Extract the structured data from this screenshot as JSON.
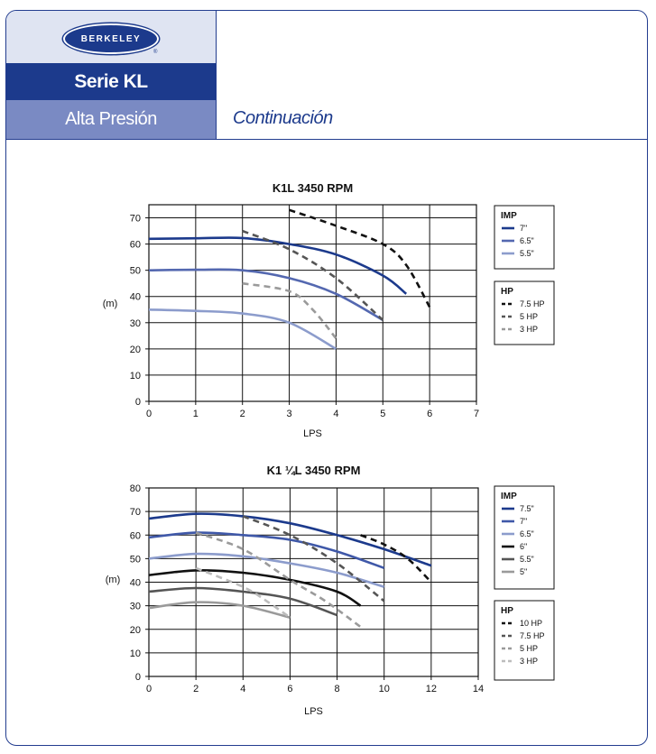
{
  "header": {
    "logo_text": "BERKELEY",
    "logo_reg": "®",
    "series": "Serie KL",
    "subtitle": "Alta Presión",
    "continuation": "Continuación"
  },
  "colors": {
    "brand_blue": "#1c3a8c",
    "band_light": "#7a8ac3",
    "logo_bg": "#dfe4f2"
  },
  "chart_data": [
    {
      "type": "line",
      "title": "K1L 3450 RPM",
      "xlabel": "LPS",
      "ylabel": "(m)",
      "xlim": [
        0,
        7
      ],
      "ylim": [
        0,
        75
      ],
      "xticks": [
        0,
        1,
        2,
        3,
        4,
        5,
        6,
        7
      ],
      "yticks": [
        0,
        10,
        20,
        30,
        40,
        50,
        60,
        70
      ],
      "grid": true,
      "legend_position": "right",
      "impeller_legend": {
        "title": "IMP",
        "items": [
          {
            "label": "7\"",
            "color": "#1c3a8c"
          },
          {
            "label": "6.5\"",
            "color": "#5468b0"
          },
          {
            "label": "5.5\"",
            "color": "#8c9ccc"
          }
        ]
      },
      "hp_legend": {
        "title": "HP",
        "items": [
          {
            "label": "7.5 HP",
            "color": "#111111"
          },
          {
            "label": "5 HP",
            "color": "#555555"
          },
          {
            "label": "3 HP",
            "color": "#9a9a9a"
          }
        ]
      },
      "series": [
        {
          "name": "7\"",
          "color": "#1c3a8c",
          "dashed": false,
          "x": [
            0,
            1,
            2,
            3,
            4,
            5,
            5.5
          ],
          "y": [
            62,
            62.2,
            62.3,
            60,
            56,
            48,
            41
          ]
        },
        {
          "name": "6.5\"",
          "color": "#5468b0",
          "dashed": false,
          "x": [
            0,
            1,
            2,
            3,
            4,
            5
          ],
          "y": [
            50,
            50.2,
            50,
            47,
            41,
            31
          ]
        },
        {
          "name": "5.5\"",
          "color": "#8c9ccc",
          "dashed": false,
          "x": [
            0,
            1,
            2,
            3,
            4
          ],
          "y": [
            35,
            34.5,
            33.5,
            30,
            20
          ]
        },
        {
          "name": "7.5 HP",
          "color": "#111111",
          "dashed": true,
          "x": [
            3,
            4,
            5,
            5.5,
            6
          ],
          "y": [
            73,
            67,
            60,
            52,
            36
          ]
        },
        {
          "name": "5 HP",
          "color": "#555555",
          "dashed": true,
          "x": [
            2,
            3,
            4,
            5
          ],
          "y": [
            65,
            58,
            47,
            31
          ]
        },
        {
          "name": "3 HP",
          "color": "#9a9a9a",
          "dashed": true,
          "x": [
            2,
            3,
            3.5,
            4
          ],
          "y": [
            45,
            42,
            35,
            24
          ]
        }
      ]
    },
    {
      "type": "line",
      "title": "K1 ¼L 3450 RPM",
      "xlabel": "LPS",
      "ylabel": "(m)",
      "xlim": [
        0,
        14
      ],
      "ylim": [
        0,
        80
      ],
      "xticks": [
        0,
        2,
        4,
        6,
        8,
        10,
        12,
        14
      ],
      "yticks": [
        0,
        10,
        20,
        30,
        40,
        50,
        60,
        70,
        80
      ],
      "grid": true,
      "legend_position": "right",
      "impeller_legend": {
        "title": "IMP",
        "items": [
          {
            "label": "7.5\"",
            "color": "#1c3a8c"
          },
          {
            "label": "7\"",
            "color": "#3f58a8"
          },
          {
            "label": "6.5\"",
            "color": "#8c9ccc"
          },
          {
            "label": "6\"",
            "color": "#111111"
          },
          {
            "label": "5.5\"",
            "color": "#555555"
          },
          {
            "label": "5\"",
            "color": "#9a9a9a"
          }
        ]
      },
      "hp_legend": {
        "title": "HP",
        "items": [
          {
            "label": "10 HP",
            "color": "#111111"
          },
          {
            "label": "7.5 HP",
            "color": "#555555"
          },
          {
            "label": "5 HP",
            "color": "#9a9a9a"
          },
          {
            "label": "3 HP",
            "color": "#bcbcbc"
          }
        ]
      },
      "series": [
        {
          "name": "7.5\"",
          "color": "#1c3a8c",
          "dashed": false,
          "x": [
            0,
            2,
            4,
            6,
            8,
            10,
            12
          ],
          "y": [
            67,
            69,
            68,
            65,
            60,
            54,
            47
          ]
        },
        {
          "name": "7\"",
          "color": "#3f58a8",
          "dashed": false,
          "x": [
            0,
            2,
            4,
            6,
            8,
            10
          ],
          "y": [
            59,
            61,
            60,
            58,
            53,
            46
          ]
        },
        {
          "name": "6.5\"",
          "color": "#8c9ccc",
          "dashed": false,
          "x": [
            0,
            2,
            4,
            6,
            8,
            10
          ],
          "y": [
            50,
            52,
            51,
            48,
            44,
            38
          ]
        },
        {
          "name": "6\"",
          "color": "#111111",
          "dashed": false,
          "x": [
            0,
            2,
            4,
            6,
            8,
            9
          ],
          "y": [
            43,
            45,
            44,
            41,
            36,
            30
          ]
        },
        {
          "name": "5.5\"",
          "color": "#555555",
          "dashed": false,
          "x": [
            0,
            2,
            4,
            6,
            8
          ],
          "y": [
            36,
            37.5,
            36,
            33,
            26
          ]
        },
        {
          "name": "5\"",
          "color": "#9a9a9a",
          "dashed": false,
          "x": [
            0,
            2,
            4,
            6
          ],
          "y": [
            29,
            31.5,
            30,
            25
          ]
        },
        {
          "name": "10 HP",
          "color": "#111111",
          "dashed": true,
          "x": [
            9,
            10,
            11,
            12
          ],
          "y": [
            60,
            56,
            50,
            40
          ]
        },
        {
          "name": "7.5 HP",
          "color": "#555555",
          "dashed": true,
          "x": [
            4,
            6,
            8,
            10
          ],
          "y": [
            68,
            60,
            48,
            32
          ]
        },
        {
          "name": "5 HP",
          "color": "#9a9a9a",
          "dashed": true,
          "x": [
            2,
            4,
            6,
            7.5,
            9
          ],
          "y": [
            61,
            54,
            41,
            32,
            21
          ]
        },
        {
          "name": "3 HP",
          "color": "#bcbcbc",
          "dashed": true,
          "x": [
            2,
            4,
            5,
            6
          ],
          "y": [
            46,
            38,
            32,
            25
          ]
        }
      ]
    }
  ]
}
